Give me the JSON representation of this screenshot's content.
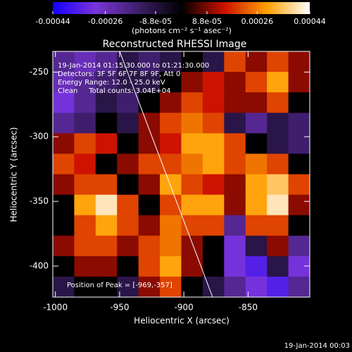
{
  "chart_data": {
    "type": "heatmap",
    "title": "Reconstructed RHESSI Image",
    "xlabel": "Heliocentric X (arcsec)",
    "ylabel": "Heliocentric Y (arcsec)",
    "xlim": [
      -1002,
      -802
    ],
    "ylim": [
      -424,
      -234
    ],
    "xticks": [
      -1000,
      -950,
      -900,
      -850
    ],
    "yticks": [
      -250,
      -300,
      -350,
      -400
    ],
    "clim": [
      -0.00044,
      0.00044
    ],
    "cticks": [
      -0.00044,
      -0.00026,
      {
        "value": -8.8e-05,
        "label": "-8.8e-05"
      },
      {
        "value": 8.8e-05,
        "label": "8.8e-05"
      },
      0.00026,
      0.00044
    ],
    "colorbar_label": "(photons cm⁻² s⁻¹ asec⁻²)",
    "colorscale": [
      "#1400ff",
      "#7a34d8",
      "#3e1f6a",
      "#000000",
      "#cc1000",
      "#ffa000",
      "#ffffff"
    ],
    "annotations": [
      "19-Jan-2014 01:15:30.000 to 01:21:30.000",
      "Detectors: 3F 5F 6F 7F 8F 9F, Att 0",
      "Energy Range: 12.0 - 25.0 keV",
      "Clean     Total counts: 3.04E+04"
    ],
    "peak_annotation": "Position of Peak = [-969,-357]",
    "timestamp": "19-Jan-2014 00:03",
    "z": [
      [
        -0.0002,
        -0.00025,
        -0.0002,
        -0.0001,
        -0.00015,
        -0.0001,
        0,
        -0.0001,
        0.0002,
        0.0001,
        0.0002,
        0.0001
      ],
      [
        -0.00025,
        -0.0002,
        -0.00015,
        -0.0001,
        -0.0001,
        0,
        0.0001,
        0.00015,
        0.0001,
        0.0002,
        0.0003,
        0.0001
      ],
      [
        -0.0003,
        -0.0002,
        -0.0001,
        -0.00015,
        0,
        0.0001,
        0.0002,
        0.00015,
        0.0001,
        0.0001,
        0.0002,
        0
      ],
      [
        -0.0002,
        -0.00015,
        0,
        -0.0001,
        0.0001,
        0.0002,
        0.00025,
        0.0002,
        -0.0001,
        -0.0002,
        -0.0001,
        -0.00015
      ],
      [
        0.0001,
        0.0002,
        0.00015,
        0,
        0.0001,
        0.00015,
        0.0003,
        0.0003,
        0.0002,
        0,
        -0.0001,
        -0.00015
      ],
      [
        0.0002,
        0.00015,
        0,
        0.0001,
        0.0002,
        0.0002,
        0.00025,
        0.0003,
        0.0002,
        0.00025,
        0.0002,
        0
      ],
      [
        0.0001,
        0.0002,
        0.0002,
        0,
        0.0001,
        0.0003,
        0.0002,
        0.00015,
        0.0001,
        0.0003,
        0.00035,
        0.0002
      ],
      [
        0,
        0.0003,
        0.0004,
        0.0002,
        0,
        0.0002,
        0.0003,
        0.0003,
        0.0001,
        0.0003,
        0.0004,
        0.0001
      ],
      [
        0,
        0.0002,
        0.0003,
        0.0002,
        0.0001,
        0.00025,
        0.0002,
        0.0002,
        -0.0002,
        0.0002,
        0.0002,
        0
      ],
      [
        0.0001,
        0.0002,
        0.0002,
        0.0001,
        0.0002,
        0.00025,
        0.0001,
        0,
        -0.0003,
        -0.0001,
        0.0001,
        -0.0002
      ],
      [
        0,
        0.0001,
        0.0001,
        0,
        0.0002,
        0.0003,
        0.0001,
        0,
        -0.0003,
        -0.00035,
        -0.0001,
        -0.0003
      ],
      [
        -0.0001,
        0,
        0,
        -0.0001,
        0.0001,
        0.0002,
        0,
        -0.0001,
        -0.0002,
        -0.0003,
        -0.00035,
        -0.0002
      ]
    ]
  }
}
